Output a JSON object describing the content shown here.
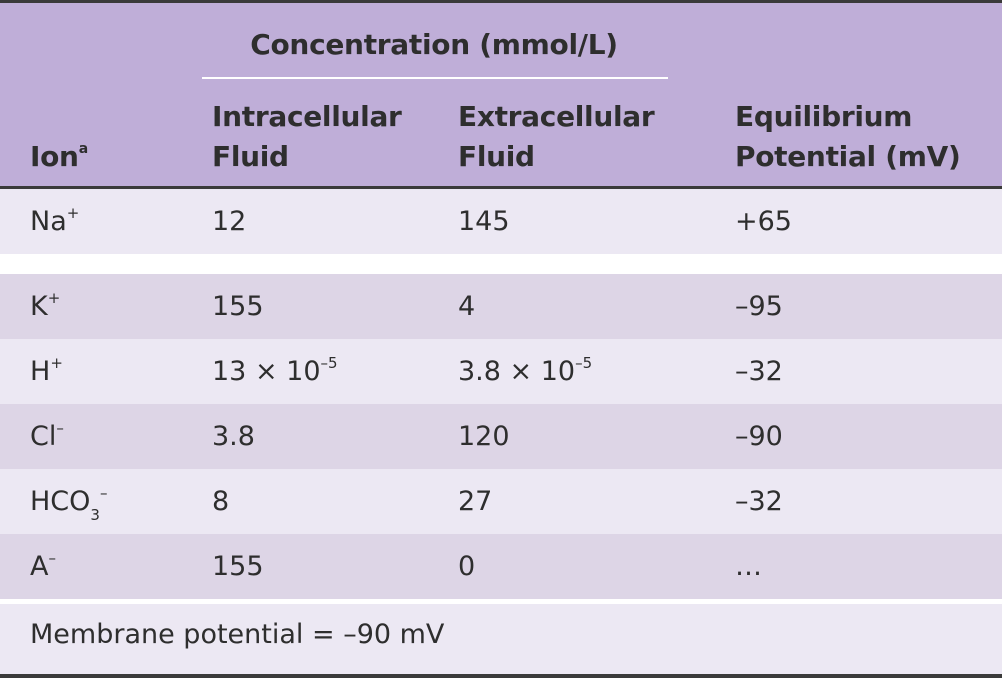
{
  "header": {
    "group_title": "Concentration (mmol/L)",
    "ion_label": "Ion",
    "ion_footnote_mark": "a",
    "intracellular_line1": "Intracellular",
    "intracellular_line2": "Fluid",
    "extracellular_line1": "Extracellular",
    "extracellular_line2": "Fluid",
    "equilibrium_line1": "Equilibrium",
    "equilibrium_line2": "Potential (mV)"
  },
  "rows": [
    {
      "ion_base": "Na",
      "ion_sub": "",
      "ion_sup": "+",
      "intra": "12",
      "intra_exp": "",
      "extra": "145",
      "extra_exp": "",
      "potential": "+65"
    },
    {
      "ion_base": "K",
      "ion_sub": "",
      "ion_sup": "+",
      "intra": "155",
      "intra_exp": "",
      "extra": "4",
      "extra_exp": "",
      "potential": "–95"
    },
    {
      "ion_base": "H",
      "ion_sub": "",
      "ion_sup": "+",
      "intra": "13 × 10",
      "intra_exp": "–5",
      "extra": "3.8 × 10",
      "extra_exp": "–5",
      "potential": "–32"
    },
    {
      "ion_base": "Cl",
      "ion_sub": "",
      "ion_sup": "–",
      "intra": "3.8",
      "intra_exp": "",
      "extra": "120",
      "extra_exp": "",
      "potential": "–90"
    },
    {
      "ion_base": "HCO",
      "ion_sub": "3",
      "ion_sup": "–",
      "intra": "8",
      "intra_exp": "",
      "extra": "27",
      "extra_exp": "",
      "potential": "–32"
    },
    {
      "ion_base": "A",
      "ion_sub": "",
      "ion_sup": "–",
      "intra": "155",
      "intra_exp": "",
      "extra": "0",
      "extra_exp": "",
      "potential": "…"
    }
  ],
  "footer": {
    "membrane_potential": "Membrane potential = –90 mV"
  },
  "colors": {
    "header_bg": "#bfaed8",
    "row_plain": "#ece8f3",
    "row_shaded": "#ddd5e6",
    "rule": "#3a3a3a"
  }
}
